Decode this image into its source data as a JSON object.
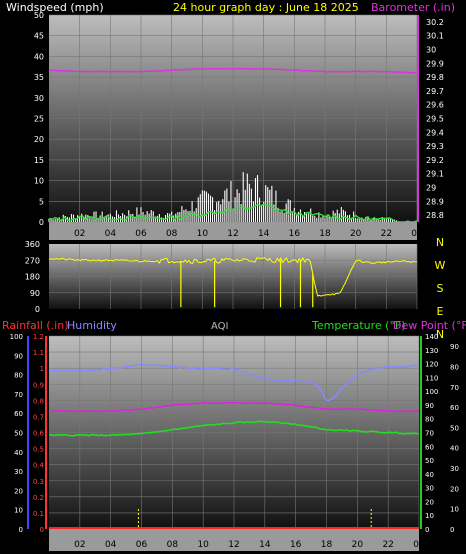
{
  "header": {
    "windspeed_label": "Windspeed (mph)",
    "title": "24 hour graph day : June 18 2025",
    "barometer_label": "Barometer (.in)"
  },
  "legend2": {
    "rainfall_label": "Rainfall (.in)",
    "humidity_label": "Humidity",
    "aqi_label": "AQI",
    "temperature_label": "Temperature (°F)",
    "dewpoint_label": "Dew Point (°F)"
  },
  "colors": {
    "windspeed": "#ffffff",
    "windavg": "#33dd33",
    "barometer": "#dd33dd",
    "winddir": "#ffff00",
    "rainfall": "#ff2222",
    "humidity": "#8888ff",
    "temperature": "#22dd22",
    "dewpoint": "#dd22dd",
    "axis_left2": "#4444ff",
    "axis_rain": "#ff3333",
    "axis_temp": "#22cc22",
    "tick_text": "#ffffff",
    "time_text": "#000000",
    "title_text": "#ffff00"
  },
  "chart_data": [
    {
      "type": "line",
      "x_ticks": [
        "02",
        "04",
        "06",
        "08",
        "10",
        "12",
        "14",
        "16",
        "18",
        "20",
        "22",
        "00"
      ],
      "y_left": {
        "label": "Windspeed (mph)",
        "ticks": [
          0,
          5,
          10,
          15,
          20,
          25,
          30,
          35,
          40,
          45,
          50
        ],
        "range": [
          0,
          50
        ]
      },
      "y_right": {
        "label": "Barometer (.in)",
        "ticks": [
          "28.8",
          "28.9",
          "29",
          "29.1",
          "29.2",
          "29.3",
          "29.4",
          "29.5",
          "29.6",
          "29.7",
          "29.8",
          "29.9",
          "30",
          "30.1",
          "30.2"
        ],
        "range": [
          28.75,
          30.25
        ]
      },
      "series": [
        {
          "name": "Barometer",
          "axis": "right",
          "x": [
            0,
            2,
            4,
            6,
            8,
            10,
            12,
            14,
            16,
            18,
            20,
            22,
            24
          ],
          "values": [
            29.85,
            29.84,
            29.84,
            29.84,
            29.85,
            29.86,
            29.86,
            29.86,
            29.85,
            29.84,
            29.84,
            29.84,
            29.83
          ]
        },
        {
          "name": "Windspeed",
          "axis": "left",
          "x": [
            0,
            2,
            4,
            6,
            8,
            9,
            10,
            11,
            12,
            13,
            14,
            15,
            16,
            17,
            18,
            19,
            20,
            21,
            22,
            23,
            24
          ],
          "values": [
            1,
            2,
            2,
            3,
            2,
            4,
            6,
            7,
            8,
            10,
            9,
            6,
            4,
            3,
            2,
            3,
            2,
            1,
            1,
            0,
            0
          ]
        },
        {
          "name": "Wind average",
          "axis": "left",
          "x": [
            0,
            2,
            4,
            6,
            8,
            10,
            12,
            14,
            16,
            18,
            20,
            22,
            24
          ],
          "values": [
            0.5,
            1,
            1,
            1,
            1,
            2,
            3,
            4,
            2,
            1.5,
            1,
            0.5,
            0
          ]
        }
      ]
    },
    {
      "type": "line",
      "x_ticks": [
        "02",
        "04",
        "06",
        "08",
        "10",
        "12",
        "14",
        "16",
        "18",
        "20",
        "22",
        "00"
      ],
      "y_left": {
        "ticks": [
          0,
          90,
          180,
          270,
          360
        ],
        "range": [
          0,
          360
        ]
      },
      "y_right": {
        "ticks": [
          "N",
          "W",
          "S",
          "E",
          "N"
        ]
      },
      "series": [
        {
          "name": "Wind direction",
          "x": [
            0,
            2,
            4,
            6,
            8,
            10,
            12,
            14,
            15,
            16,
            17,
            17.5,
            18,
            19,
            20,
            21,
            22,
            23,
            24
          ],
          "values": [
            280,
            270,
            270,
            265,
            270,
            265,
            270,
            275,
            270,
            270,
            275,
            70,
            80,
            85,
            270,
            255,
            260,
            265,
            260
          ]
        }
      ]
    },
    {
      "type": "line",
      "x_ticks": [
        "02",
        "04",
        "06",
        "08",
        "10",
        "12",
        "14",
        "16",
        "18",
        "20",
        "22",
        "00"
      ],
      "y_left_outer": {
        "label": "Humidity",
        "ticks": [
          0,
          10,
          20,
          30,
          40,
          50,
          60,
          70,
          80,
          90,
          100
        ],
        "range": [
          0,
          100
        ]
      },
      "y_left_inner": {
        "label": "Rainfall (.in)",
        "ticks": [
          "0",
          "0.1",
          "0.2",
          "0.3",
          "0.4",
          "0.5",
          "0.6",
          "0.7",
          "0.8",
          "0.9",
          "1",
          "1.1",
          "1.2"
        ],
        "range": [
          0,
          1.2
        ]
      },
      "y_right_inner": {
        "label": "Temperature (°F)",
        "ticks": [
          0,
          10,
          20,
          30,
          40,
          50,
          60,
          70,
          80,
          90,
          100,
          110,
          120,
          130,
          140
        ],
        "range": [
          0,
          140
        ]
      },
      "y_right_outer": {
        "label": "Dew Point (°F)",
        "ticks": [
          0,
          10,
          20,
          30,
          40,
          50,
          60,
          70,
          80,
          90
        ],
        "range": [
          0,
          95
        ]
      },
      "series": [
        {
          "name": "Humidity",
          "axis": "left_outer",
          "x": [
            0,
            2,
            4,
            6,
            7,
            8,
            10,
            12,
            13,
            14,
            15,
            16,
            17,
            17.5,
            18,
            18.5,
            19,
            20,
            21,
            22,
            23,
            24
          ],
          "values": [
            82,
            82,
            83,
            85,
            85,
            84,
            83,
            83,
            80,
            78,
            77,
            77,
            76,
            74,
            66,
            68,
            73,
            80,
            83,
            84,
            84,
            85
          ]
        },
        {
          "name": "Temperature",
          "axis": "right_inner",
          "x": [
            0,
            2,
            4,
            6,
            8,
            10,
            12,
            14,
            16,
            18,
            20,
            22,
            24
          ],
          "values": [
            68,
            68,
            68,
            69,
            72,
            75,
            77,
            78,
            76,
            72,
            71,
            70,
            69
          ]
        },
        {
          "name": "Dew Point",
          "axis": "right_outer",
          "x": [
            0,
            2,
            4,
            6,
            8,
            10,
            12,
            14,
            16,
            18,
            20,
            22,
            24
          ],
          "values": [
            58,
            58,
            58,
            59,
            61,
            62,
            62,
            62,
            61,
            59,
            59,
            58,
            58
          ]
        },
        {
          "name": "Rainfall",
          "axis": "left_inner",
          "x": [
            0,
            24
          ],
          "values": [
            0,
            0
          ]
        }
      ]
    }
  ]
}
